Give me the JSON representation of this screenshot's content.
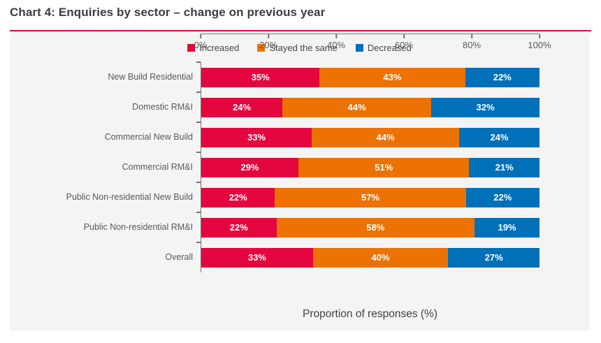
{
  "title": "Chart 4: Enquiries by sector – change on previous year",
  "colors": {
    "increased": "#e4063e",
    "stayed_the_same": "#ec7203",
    "decreased": "#0070b9",
    "panel_background": "#f4f4f4",
    "accent_rule": "#e4063e",
    "axis": "#737373"
  },
  "legend": [
    {
      "label": "Increased",
      "color": "#e4063e"
    },
    {
      "label": "Stayed the same",
      "color": "#ec7203"
    },
    {
      "label": "Decreased",
      "color": "#0070b9"
    }
  ],
  "x_axis": {
    "tick_labels": [
      "0%",
      "20%",
      "40%",
      "60%",
      "80%",
      "100%"
    ],
    "tick_positions": [
      0,
      20,
      40,
      60,
      80,
      100
    ],
    "title": "Proportion of responses (%)"
  },
  "chart_data": {
    "type": "bar",
    "orientation": "horizontal",
    "stacked": true,
    "title": "Chart 4: Enquiries by sector – change on previous year",
    "xlabel": "Proportion of responses (%)",
    "ylabel": "",
    "xlim": [
      0,
      100
    ],
    "value_suffix": "%",
    "grid": false,
    "legend_position": "top-center",
    "categories": [
      "New Build Residential",
      "Domestic RM&I",
      "Commercial New Build",
      "Commercial RM&I",
      "Public Non-residential New Build",
      "Public Non-residential RM&I",
      "Overall"
    ],
    "series": [
      {
        "name": "Increased",
        "color": "#e4063e",
        "values": [
          35,
          24,
          33,
          29,
          22,
          22,
          33
        ]
      },
      {
        "name": "Stayed the same",
        "color": "#ec7203",
        "values": [
          43,
          44,
          44,
          51,
          57,
          58,
          40
        ]
      },
      {
        "name": "Decreased",
        "color": "#0070b9",
        "values": [
          22,
          32,
          24,
          21,
          22,
          19,
          27
        ]
      }
    ]
  }
}
